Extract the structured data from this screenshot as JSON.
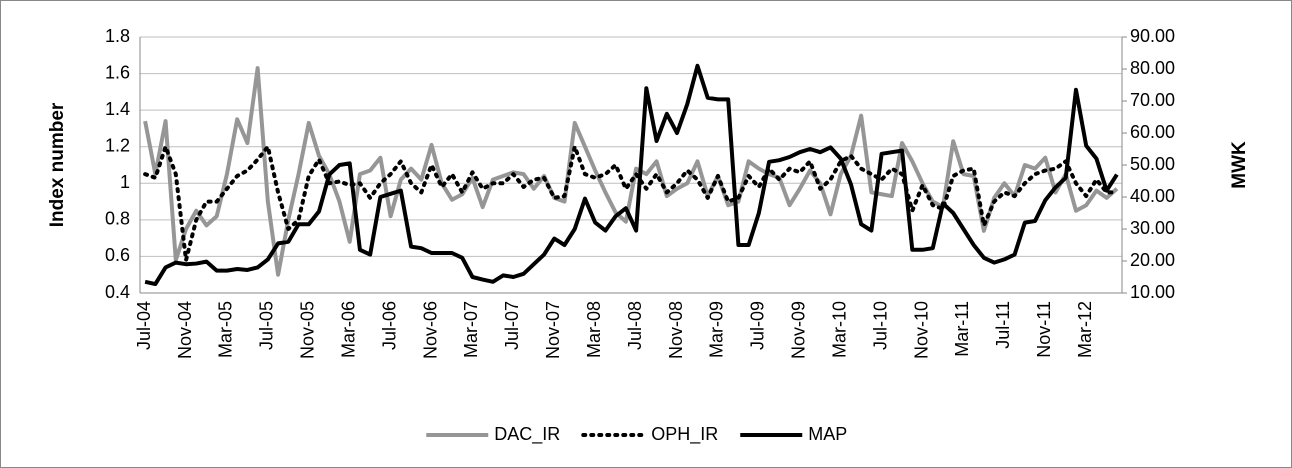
{
  "chart_data": {
    "type": "line",
    "y_label": "Index number",
    "y2_label": "MWK",
    "categories": [
      "Jul-04",
      null,
      null,
      null,
      "Nov-04",
      null,
      null,
      null,
      "Mar-05",
      null,
      null,
      null,
      "Jul-05",
      null,
      null,
      null,
      "Nov-05",
      null,
      null,
      null,
      "Mar-06",
      null,
      null,
      null,
      "Jul-06",
      null,
      null,
      null,
      "Nov-06",
      null,
      null,
      null,
      "Mar-07",
      null,
      null,
      null,
      "Jul-07",
      null,
      null,
      null,
      "Nov-07",
      null,
      null,
      null,
      "Mar-08",
      null,
      null,
      null,
      "Jul-08",
      null,
      null,
      null,
      "Nov-08",
      null,
      null,
      null,
      "Mar-09",
      null,
      null,
      null,
      "Jul-09",
      null,
      null,
      null,
      "Nov-09",
      null,
      null,
      null,
      "Mar-10",
      null,
      null,
      null,
      "Jul-10",
      null,
      null,
      null,
      "Nov-10",
      null,
      null,
      null,
      "Mar-11",
      null,
      null,
      null,
      "Jul-11",
      null,
      null,
      null,
      "Nov-11",
      null,
      null,
      null,
      "Mar-12",
      null,
      null,
      null
    ],
    "ylim": [
      0.4,
      1.8
    ],
    "yticks": [
      0.4,
      0.6,
      0.8,
      1,
      1.2,
      1.4,
      1.6,
      1.8
    ],
    "y2lim": [
      10,
      90
    ],
    "y2ticks": [
      {
        "value": 10,
        "label": "10.00"
      },
      {
        "value": 20,
        "label": "20.00"
      },
      {
        "value": 30,
        "label": "30.00"
      },
      {
        "value": 40,
        "label": "40.00"
      },
      {
        "value": 50,
        "label": "50.00"
      },
      {
        "value": 60,
        "label": "60.00"
      },
      {
        "value": 70,
        "label": "70.00"
      },
      {
        "value": 80,
        "label": "80.00"
      },
      {
        "value": 90,
        "label": "90.00"
      }
    ],
    "grid": true,
    "legend": "bottom",
    "series": [
      {
        "name": "DAC_IR",
        "color": "#969696",
        "line_style": "solid",
        "values": [
          1.34,
          1.05,
          1.34,
          0.58,
          0.75,
          0.85,
          0.77,
          0.82,
          1.05,
          1.35,
          1.22,
          1.63,
          0.9,
          0.5,
          0.8,
          1.05,
          1.33,
          1.15,
          1.05,
          0.9,
          0.68,
          1.05,
          1.07,
          1.14,
          0.82,
          1.02,
          1.08,
          1.02,
          1.21,
          1.0,
          0.91,
          0.94,
          1.03,
          0.87,
          1.02,
          1.04,
          1.06,
          1.05,
          0.97,
          1.04,
          0.92,
          0.9,
          1.33,
          1.2,
          1.07,
          0.95,
          0.84,
          0.79,
          1.08,
          1.05,
          1.12,
          0.93,
          0.97,
          1.0,
          1.12,
          0.93,
          1.04,
          0.88,
          0.9,
          1.12,
          1.08,
          1.05,
          1.03,
          0.88,
          0.97,
          1.07,
          1.0,
          0.83,
          1.05,
          1.15,
          1.37,
          0.95,
          0.94,
          0.93,
          1.22,
          1.12,
          1.0,
          0.9,
          0.87,
          1.23,
          1.05,
          1.04,
          0.74,
          0.92,
          1.0,
          0.93,
          1.1,
          1.08,
          1.14,
          0.95,
          1.05,
          0.85,
          0.88,
          0.96,
          0.92,
          0.97
        ]
      },
      {
        "name": "OPH_IR",
        "color": "#000000",
        "line_style": "dotted",
        "values": [
          1.05,
          1.03,
          1.2,
          1.05,
          0.58,
          0.8,
          0.9,
          0.9,
          0.97,
          1.04,
          1.07,
          1.13,
          1.2,
          0.95,
          0.75,
          0.8,
          1.04,
          1.13,
          1.0,
          1.01,
          0.99,
          1.0,
          0.92,
          1.0,
          1.05,
          1.12,
          1.0,
          0.95,
          1.1,
          0.98,
          1.05,
          0.95,
          1.06,
          0.97,
          1.0,
          1.0,
          1.05,
          0.98,
          1.02,
          1.03,
          0.92,
          0.93,
          1.2,
          1.05,
          1.03,
          1.05,
          1.1,
          0.97,
          1.05,
          0.97,
          1.05,
          0.95,
          1.0,
          1.07,
          1.02,
          0.92,
          1.04,
          0.9,
          0.92,
          1.04,
          0.98,
          1.08,
          1.02,
          1.08,
          1.06,
          1.12,
          0.97,
          1.02,
          1.12,
          1.15,
          1.08,
          1.05,
          1.02,
          1.08,
          1.05,
          0.85,
          0.99,
          0.88,
          0.86,
          1.04,
          1.07,
          1.08,
          0.77,
          0.9,
          0.95,
          0.93,
          1.0,
          1.05,
          1.07,
          1.08,
          1.12,
          1.0,
          0.93,
          1.02,
          0.95,
          0.95
        ]
      },
      {
        "name": "MAP",
        "color": "#000000",
        "line_style": "solid",
        "axis": "y2",
        "values": [
          13.5,
          12.8,
          18,
          19.5,
          19,
          19.2,
          19.8,
          17,
          17,
          17.5,
          17.2,
          18,
          20.5,
          25.5,
          26,
          31.5,
          31.5,
          35.5,
          47,
          50,
          50.5,
          23.5,
          22,
          40,
          41,
          42,
          24.5,
          24,
          22.5,
          22.5,
          22.5,
          21,
          15,
          14.2,
          13.5,
          15.5,
          15,
          16,
          19,
          22,
          27,
          25,
          30,
          39.5,
          32,
          29.5,
          34,
          36.5,
          29.5,
          74,
          57.5,
          66,
          60,
          69,
          81,
          71,
          70.5,
          70.5,
          25,
          25,
          35,
          51,
          51.5,
          52.5,
          54,
          55,
          54,
          55.5,
          52,
          44,
          31.5,
          29.5,
          53.5,
          54,
          54.5,
          23.5,
          23.5,
          24,
          38,
          35,
          30,
          25,
          21,
          19.5,
          20.5,
          22,
          32,
          32.5,
          39,
          43,
          46,
          73.5,
          56,
          52,
          42,
          47
        ]
      }
    ]
  }
}
